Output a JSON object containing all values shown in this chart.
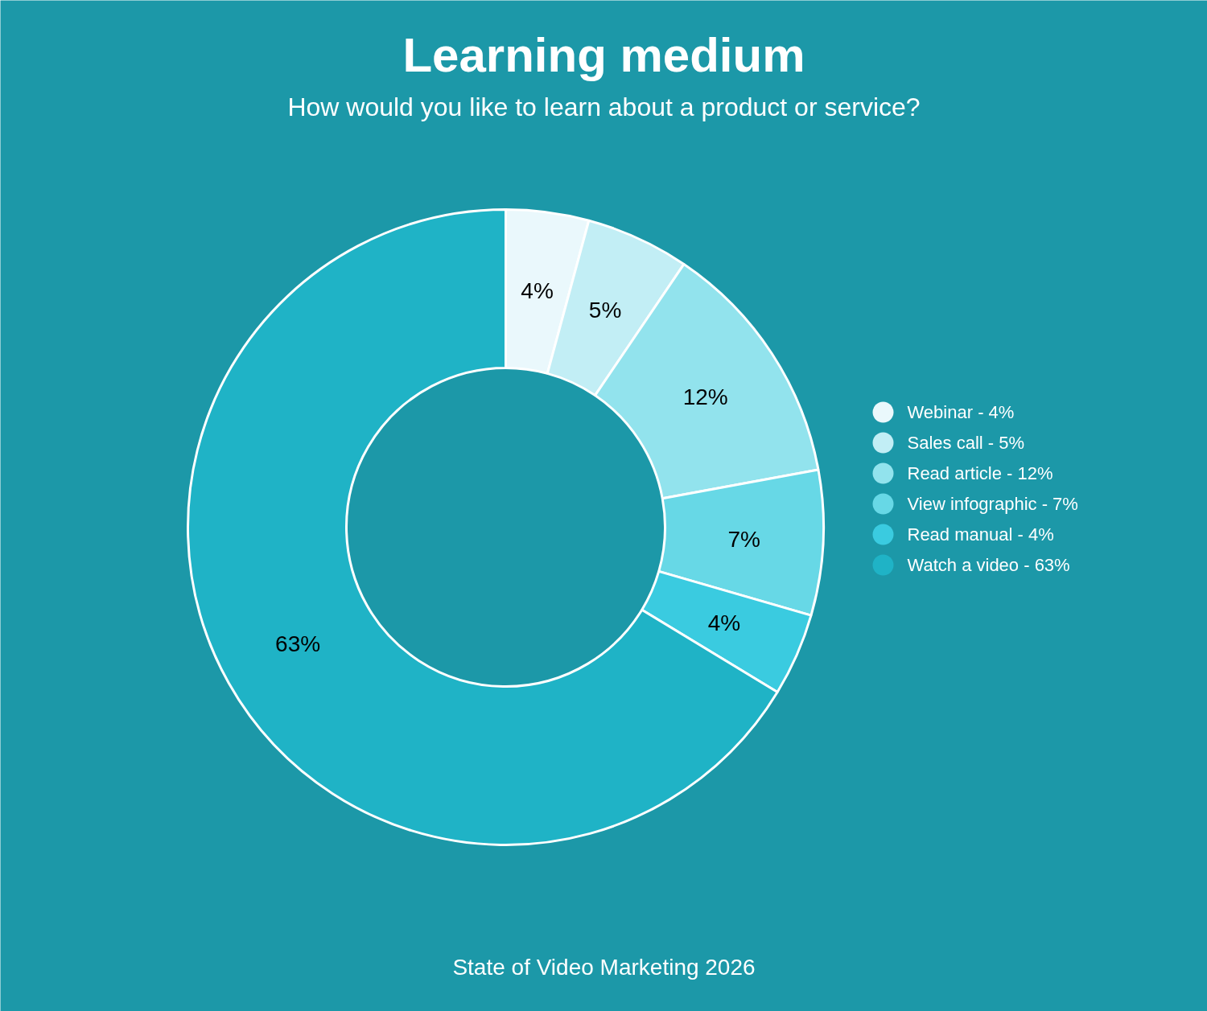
{
  "chart_data": {
    "type": "donut",
    "title": "Learning medium",
    "subtitle": "How would you like to learn about a product or service?",
    "categories": [
      "Webinar - 4%",
      "Sales call - 5%",
      "Read article - 12%",
      "View infographic - 7%",
      "Read manual - 4%",
      "Watch a video - 63%"
    ],
    "values": [
      4,
      5,
      12,
      7,
      4,
      63
    ],
    "value_labels": [
      "4%",
      "5%",
      "12%",
      "7%",
      "4%",
      "63%"
    ],
    "colors": [
      "#eaf8fc",
      "#c2eef5",
      "#92e3ed",
      "#67d8e6",
      "#3acbe0",
      "#1fb3c6"
    ],
    "legend": "right",
    "annotations": [
      "State of Video Marketing 2026"
    ]
  }
}
